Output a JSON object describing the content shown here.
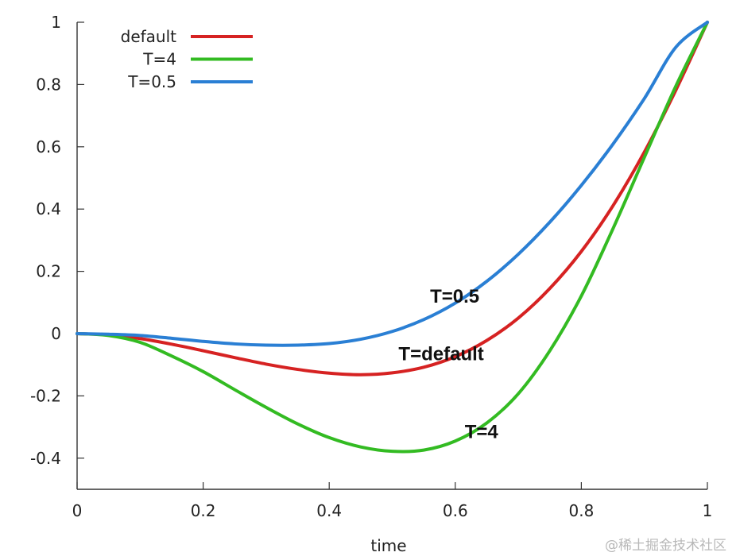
{
  "chart_data": {
    "type": "line",
    "xlabel": "time",
    "ylabel": "",
    "xlim": [
      0,
      1
    ],
    "ylim": [
      -0.5,
      1
    ],
    "xticks": [
      0,
      0.2,
      0.4,
      0.6,
      0.8,
      1
    ],
    "xtick_labels": [
      "0",
      "0.2",
      "0.4",
      "0.6",
      "0.8",
      "1"
    ],
    "yticks": [
      -0.4,
      -0.2,
      0,
      0.2,
      0.4,
      0.6,
      0.8,
      1
    ],
    "ytick_labels": [
      "-0.4",
      "-0.2",
      "0",
      "0.2",
      "0.4",
      "0.6",
      "0.8",
      "1"
    ],
    "grid": false,
    "legend_position": "top-left",
    "x": [
      0,
      0.05,
      0.1,
      0.15,
      0.2,
      0.25,
      0.3,
      0.35,
      0.4,
      0.45,
      0.5,
      0.55,
      0.6,
      0.65,
      0.7,
      0.75,
      0.8,
      0.85,
      0.9,
      0.95,
      1
    ],
    "series": [
      {
        "name": "default",
        "color": "#d62222",
        "values": [
          0,
          -0.004,
          -0.016,
          -0.034,
          -0.055,
          -0.077,
          -0.098,
          -0.115,
          -0.127,
          -0.132,
          -0.126,
          -0.108,
          -0.074,
          -0.022,
          0.05,
          0.145,
          0.264,
          0.41,
          0.583,
          0.782,
          1.0
        ]
      },
      {
        "name": "T=4",
        "color": "#33bb22",
        "values": [
          0,
          -0.006,
          -0.028,
          -0.072,
          -0.122,
          -0.18,
          -0.237,
          -0.29,
          -0.334,
          -0.364,
          -0.378,
          -0.374,
          -0.345,
          -0.287,
          -0.193,
          -0.055,
          0.121,
          0.336,
          0.566,
          0.795,
          1.0
        ]
      },
      {
        "name": "T=0.5",
        "color": "#2a7fd4",
        "values": [
          0,
          -0.002,
          -0.006,
          -0.015,
          -0.025,
          -0.033,
          -0.037,
          -0.037,
          -0.032,
          -0.018,
          0.007,
          0.045,
          0.098,
          0.168,
          0.255,
          0.358,
          0.476,
          0.608,
          0.755,
          0.92,
          1.0
        ]
      }
    ],
    "annotations": [
      {
        "text": "T=0.5",
        "x": 0.56,
        "y": 0.1
      },
      {
        "text": "T=default",
        "x": 0.51,
        "y": -0.085
      },
      {
        "text": "T=4",
        "x": 0.615,
        "y": -0.335
      }
    ]
  },
  "watermark": "@稀土掘金技术社区"
}
